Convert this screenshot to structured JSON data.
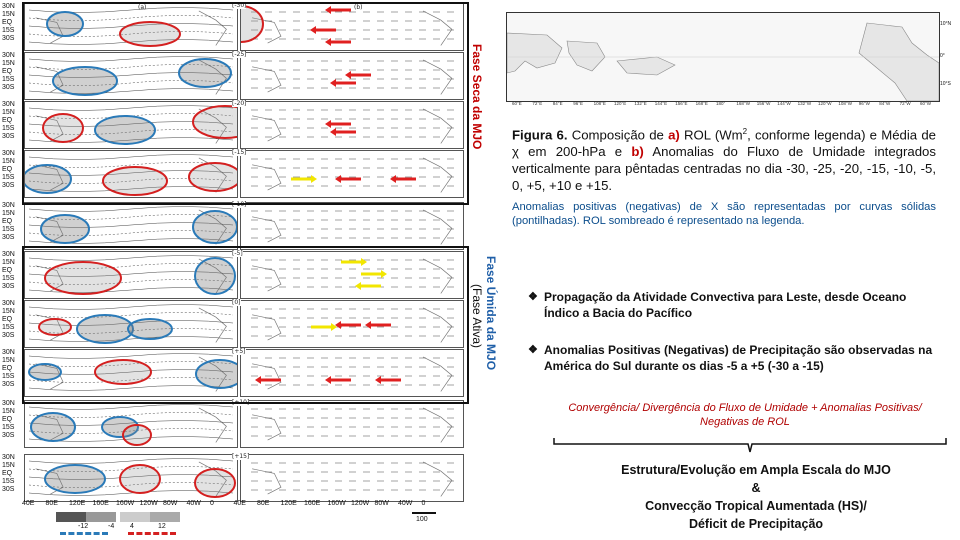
{
  "left_panel": {
    "dry_phase_label": "Fase Seca da MJO",
    "wet_phase_label": "Fase Úmida da MJO",
    "wet_phase_sublabel": "(Fase Ativa)",
    "lat_labels": [
      "30N",
      "15N",
      "EQ",
      "15S",
      "30S"
    ],
    "panel_a_tag": "(a)",
    "panel_b_tag": "(b)",
    "lag_labels": [
      "[-30]",
      "[-25]",
      "[-20]",
      "[-15]",
      "[-10]",
      "[-5]",
      "[0]",
      "[+5]",
      "[+10]",
      "[+15]"
    ],
    "lon_labels": [
      "40E",
      "80E",
      "120E",
      "160E",
      "160W",
      "120W",
      "80W",
      "40W",
      "0",
      "40E",
      "80E",
      "120E",
      "160E",
      "160W",
      "120W",
      "80W",
      "40W",
      "0"
    ],
    "legend_values": [
      "-12",
      "-4",
      "4",
      "12"
    ],
    "scale_value": "100"
  },
  "map": {
    "lon_labels": [
      "60°E",
      "72°E",
      "84°E",
      "96°E",
      "108°E",
      "120°E",
      "132°E",
      "144°E",
      "156°E",
      "168°E",
      "180°",
      "168°W",
      "156°W",
      "144°W",
      "132°W",
      "120°W",
      "108°W",
      "96°W",
      "84°W",
      "72°W",
      "60°W"
    ],
    "lat_labels": [
      "10°N",
      "0°",
      "10°S"
    ]
  },
  "caption": {
    "fig_label": "Figura 6.",
    "text1": "Composição de ",
    "a_label": "a)",
    "text2": " ROL (Wm",
    "sup": "2",
    "text3": ", conforme legenda) e Média de χ em 200-hPa e ",
    "b_label": "b)",
    "text4": " Anomalias do Fluxo de Umidade integrados verticalmente para pêntadas centradas no dia -30, -25, -20, -15, -10, -5, 0, +5, +10 e +15."
  },
  "note": "Anomalias positivas (negativas) de X são representadas por curvas sólidas (pontilhadas). ROL sombreado é representado na legenda.",
  "bullets": [
    "Propagação da Atividade Convectiva para Leste, desde Oceano Índico a Bacia do Pacífico",
    "Anomalias Positivas (Negativas) de Precipitação são observadas na América do Sul durante os dias -5 a +5 (-30 a -15)"
  ],
  "convergence": "Convergência/ Divergência do Fluxo de Umidade + Anomalias Positivas/ Negativas de ROL",
  "structure": {
    "line1": "Estrutura/Evolução em Ampla Escala do MJO",
    "line2": "&",
    "line3": "Convecção Tropical Aumentada (HS)/",
    "line4": "Déficit de Precipitação"
  },
  "colors": {
    "dry_box": "#111111",
    "dry_label": "#c00000",
    "wet_label": "#1f5fa8",
    "red_ellipse": "#d42020",
    "blue_ellipse": "#2a7ab8",
    "arrow_red": "#e02020",
    "arrow_yellow": "#f2e600"
  }
}
